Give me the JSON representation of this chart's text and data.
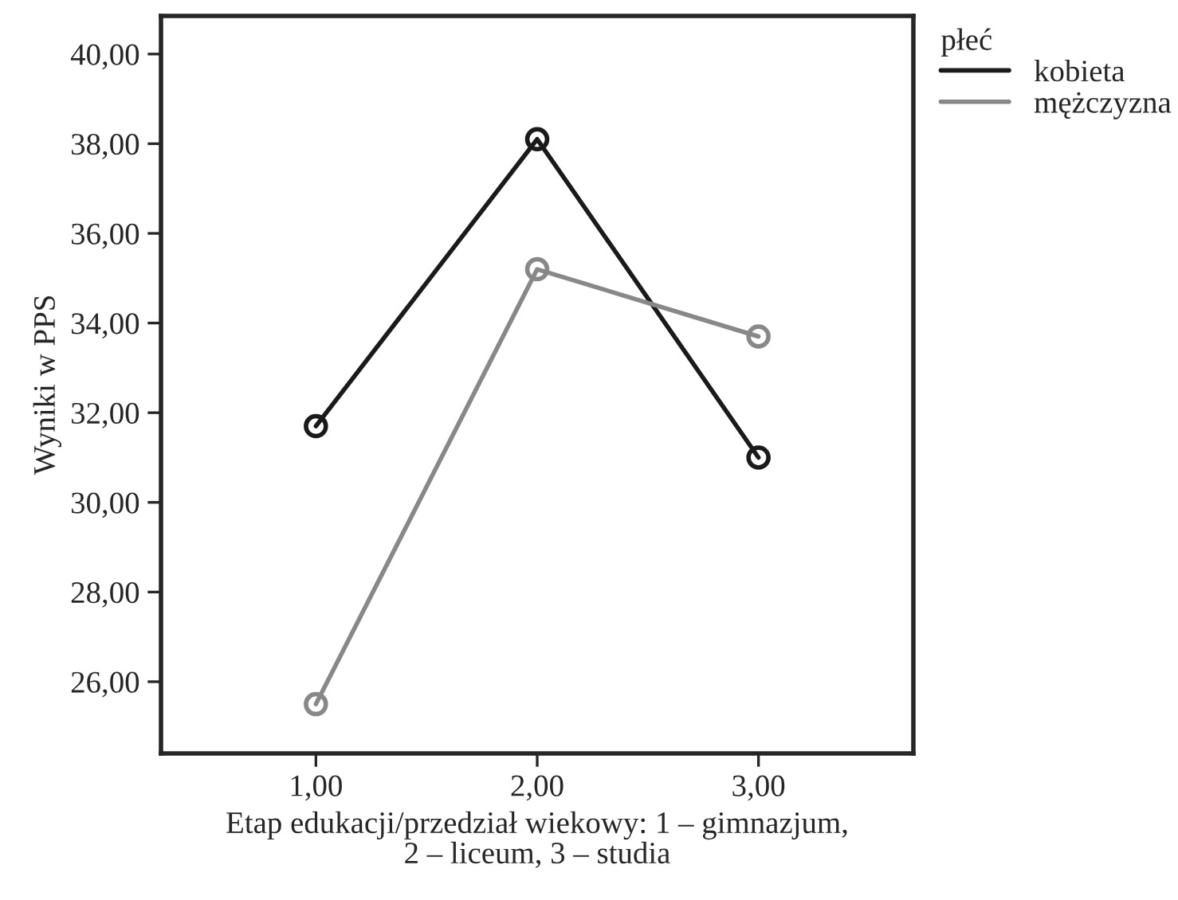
{
  "chart_data": {
    "type": "line",
    "xlabel": "Etap edukacji/przedział wiekowy: 1 – gimnazjum,\n2 – liceum, 3 – studia",
    "ylabel": "Wyniki w PPS",
    "legend_title": "płeć",
    "x": [
      1,
      2,
      3
    ],
    "series": [
      {
        "name": "kobieta",
        "color": "#1a1a1a",
        "values": [
          31.7,
          38.1,
          31.0
        ]
      },
      {
        "name": "mężczyzna",
        "color": "#888888",
        "values": [
          25.5,
          35.2,
          33.7
        ]
      }
    ],
    "xlim": [
      0.3,
      3.7
    ],
    "xticks": [
      {
        "value": 1,
        "label": "1,00"
      },
      {
        "value": 2,
        "label": "2,00"
      },
      {
        "value": 3,
        "label": "3,00"
      }
    ],
    "ylim": [
      24.4,
      40.85
    ],
    "yticks": [
      {
        "value": 26,
        "label": "26,00"
      },
      {
        "value": 28,
        "label": "28,00"
      },
      {
        "value": 30,
        "label": "30,00"
      },
      {
        "value": 32,
        "label": "32,00"
      },
      {
        "value": 34,
        "label": "34,00"
      },
      {
        "value": 36,
        "label": "36,00"
      },
      {
        "value": 38,
        "label": "38,00"
      },
      {
        "value": 40,
        "label": "40,00"
      }
    ],
    "grid": false,
    "legend": "top right",
    "marker": "circle",
    "line_style": "solid"
  }
}
